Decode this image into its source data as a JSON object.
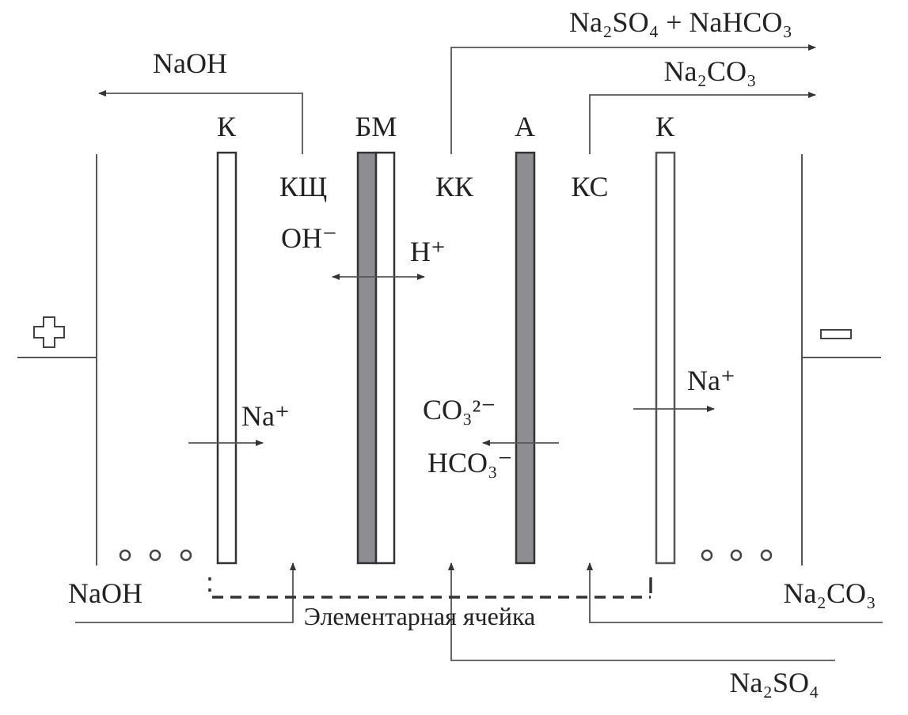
{
  "colors": {
    "line": "#555555",
    "membrane_gray": "#8e8e92",
    "text": "#222222"
  },
  "electrodes": {
    "anode_symbol": "plus",
    "cathode_symbol": "minus"
  },
  "membranes": {
    "k_left": "К",
    "bm": "БМ",
    "a": "А",
    "k_right": "К"
  },
  "chambers": {
    "alkali": "КЩ",
    "concentrate": "КК",
    "salt": "КС"
  },
  "outputs": {
    "naoh": "NaOH",
    "na2so4_nahco3": "Na₂SO₄ + NaHCO₃",
    "na2co3": "Na₂CO₃"
  },
  "ions": {
    "oh": "OH⁻",
    "h": "H⁺",
    "na_left": "Na⁺",
    "co3": "CO₃²⁻",
    "hco3": "HCO₃⁻",
    "na_right": "Na⁺"
  },
  "inputs": {
    "naoh": "NaOH",
    "na2co3": "Na₂CO₃",
    "na2so4": "Na₂SO₄"
  },
  "cell_caption": "Элементарная ячейка"
}
